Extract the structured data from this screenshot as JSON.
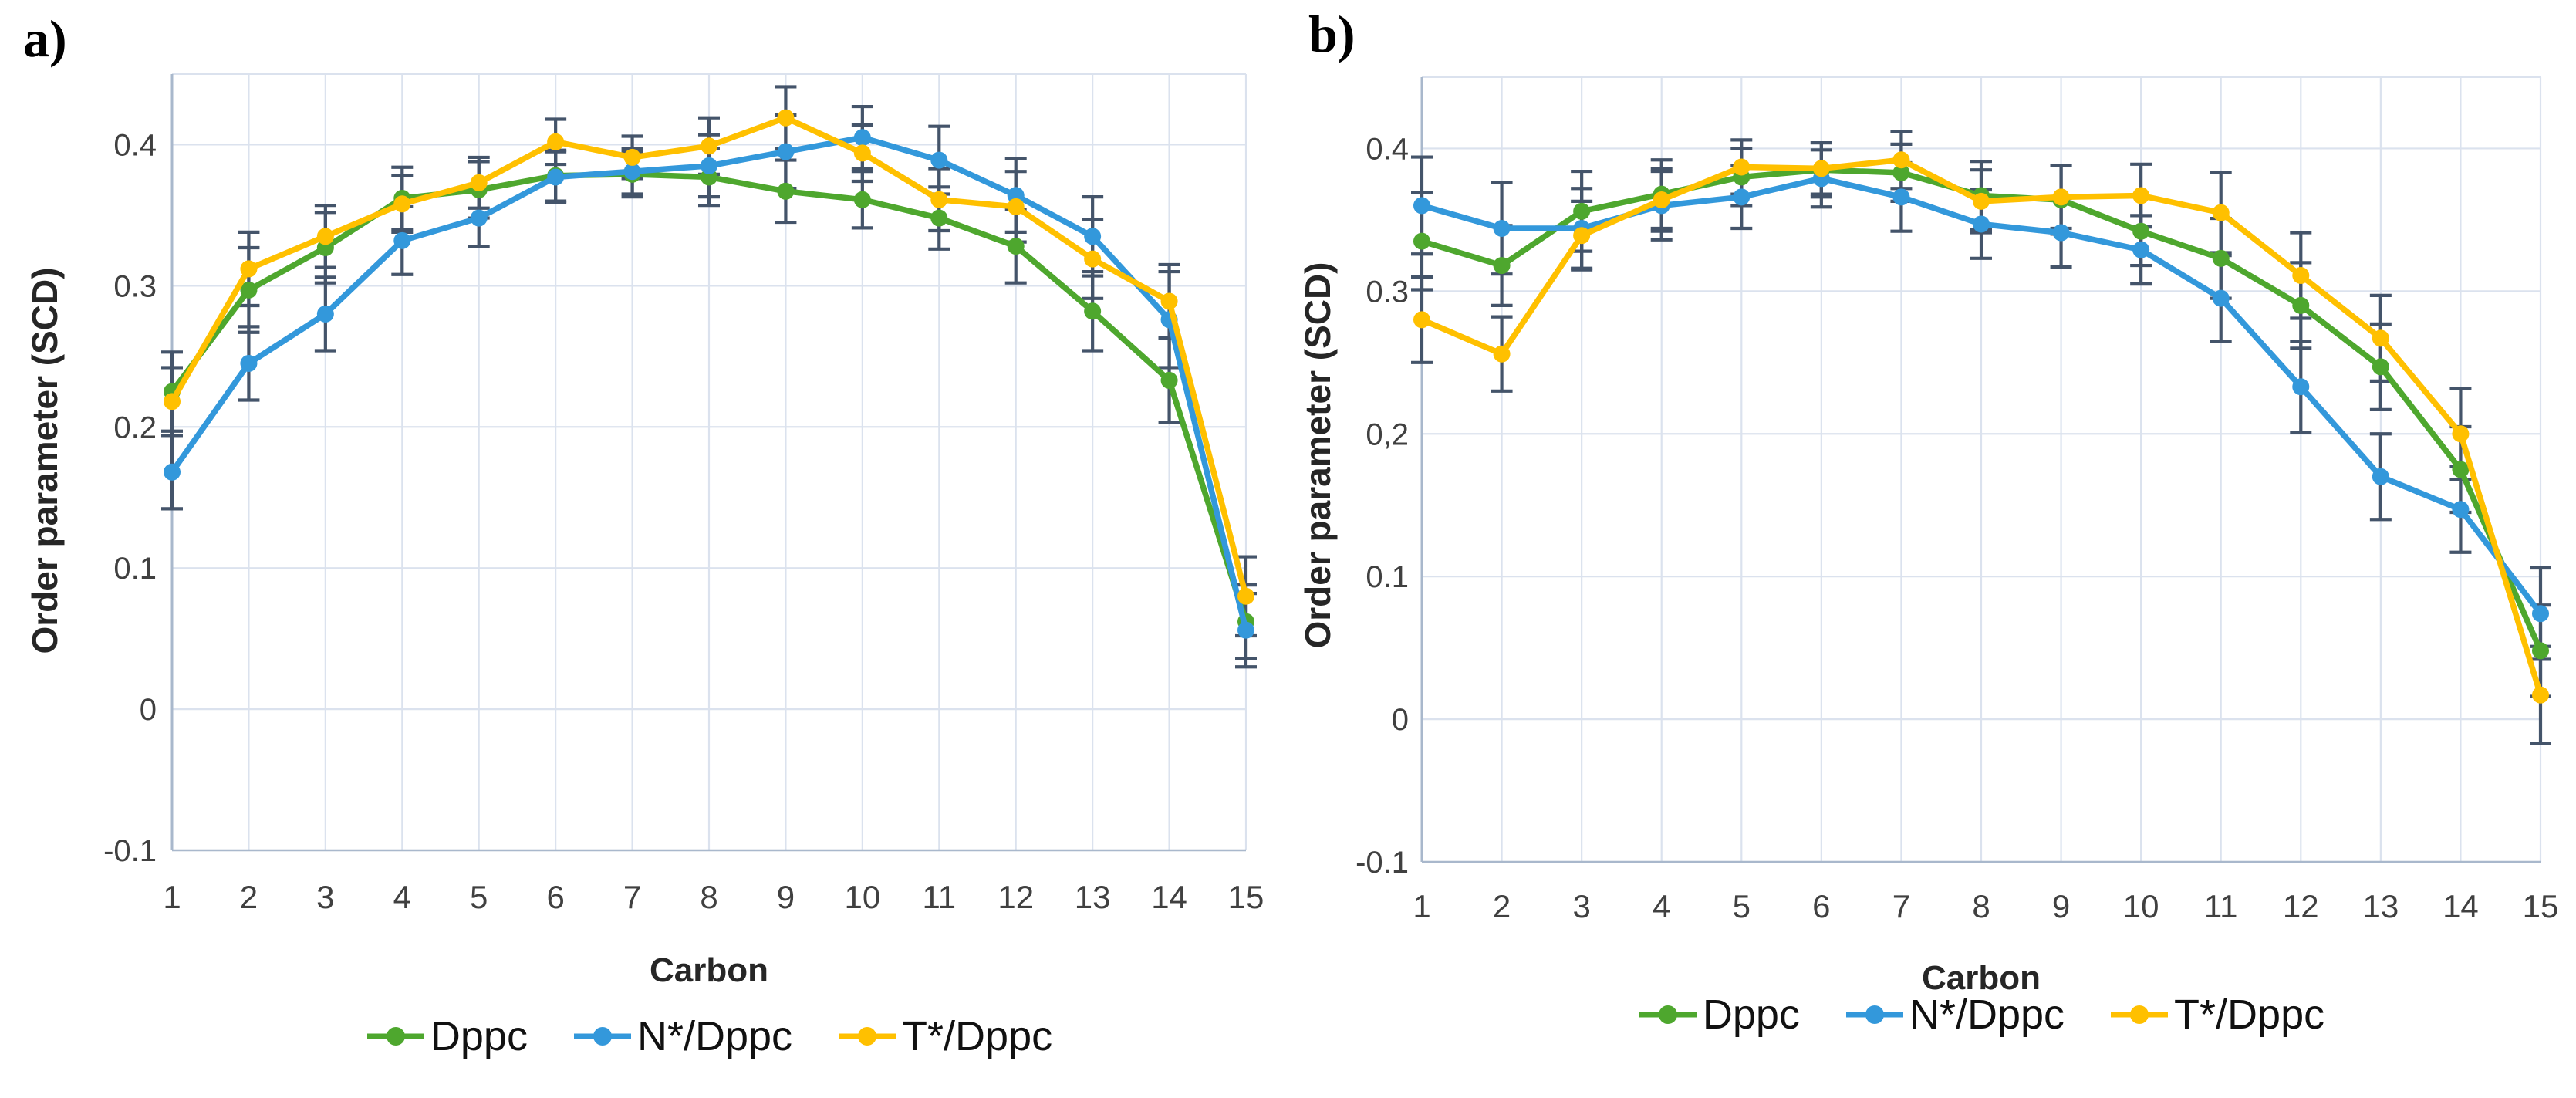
{
  "figure": {
    "background": "#ffffff",
    "panels": [
      {
        "label": "a)"
      },
      {
        "label": "b)"
      }
    ]
  },
  "colors": {
    "series_green": "#4ea72e",
    "series_blue": "#3398db",
    "series_yellow": "#ffc000",
    "error_bar": "#44546a",
    "gridline": "#dbe2ee",
    "axis_line": "#a9b8cc",
    "tick_text": "#404040",
    "title_text": "#262626"
  },
  "chart_data": [
    {
      "id": "a",
      "type": "line",
      "title": "",
      "xlabel": "Carbon",
      "ylabel": "Order parameter (SCD)",
      "ylim": [
        -0.1,
        0.45
      ],
      "grid": true,
      "legend_position": "bottom",
      "x": [
        1,
        2,
        3,
        4,
        5,
        6,
        7,
        8,
        9,
        10,
        11,
        12,
        13,
        14,
        15
      ],
      "x_tick_labels": [
        "1",
        "2",
        "3",
        "4",
        "5",
        "6",
        "7",
        "8",
        "9",
        "10",
        "11",
        "12",
        "13",
        "14",
        "15"
      ],
      "y_ticks": [
        {
          "value": 0.4,
          "label": "0.4"
        },
        {
          "value": 0.3,
          "label": "0.3"
        },
        {
          "value": 0.2,
          "label": "0.2"
        },
        {
          "value": 0.1,
          "label": "0.1"
        },
        {
          "value": 0.0,
          "label": "0"
        },
        {
          "value": -0.1,
          "label": "-0.1"
        }
      ],
      "series": [
        {
          "name": "Dppc",
          "color_key": "series_green",
          "values": [
            0.225,
            0.297,
            0.327,
            0.362,
            0.368,
            0.378,
            0.379,
            0.377,
            0.367,
            0.361,
            0.348,
            0.328,
            0.282,
            0.233,
            0.062
          ],
          "errors": [
            0.028,
            0.03,
            0.025,
            0.022,
            0.02,
            0.018,
            0.016,
            0.02,
            0.022,
            0.02,
            0.022,
            0.026,
            0.028,
            0.03,
            0.026
          ]
        },
        {
          "name": "N*/Dppc",
          "color_key": "series_blue",
          "values": [
            0.168,
            0.245,
            0.28,
            0.332,
            0.348,
            0.377,
            0.381,
            0.385,
            0.395,
            0.405,
            0.389,
            0.364,
            0.335,
            0.276,
            0.056
          ],
          "errors": [
            0.026,
            0.026,
            0.026,
            0.024,
            0.02,
            0.018,
            0.016,
            0.022,
            0.026,
            0.022,
            0.024,
            0.026,
            0.028,
            0.034,
            0.026
          ]
        },
        {
          "name": "T*/Dppc",
          "color_key": "series_yellow",
          "values": [
            0.218,
            0.312,
            0.335,
            0.358,
            0.373,
            0.402,
            0.391,
            0.399,
            0.419,
            0.394,
            0.361,
            0.356,
            0.319,
            0.289,
            0.08
          ],
          "errors": [
            0.024,
            0.026,
            0.022,
            0.02,
            0.018,
            0.016,
            0.015,
            0.02,
            0.022,
            0.02,
            0.022,
            0.025,
            0.028,
            0.026,
            0.028
          ]
        }
      ]
    },
    {
      "id": "b",
      "type": "line",
      "title": "",
      "xlabel": "Carbon",
      "ylabel": "Order parameter (SCD)",
      "ylim": [
        -0.1,
        0.45
      ],
      "grid": true,
      "legend_position": "bottom",
      "x": [
        1,
        2,
        3,
        4,
        5,
        6,
        7,
        8,
        9,
        10,
        11,
        12,
        13,
        14,
        15
      ],
      "x_tick_labels": [
        "1",
        "2",
        "3",
        "4",
        "5",
        "6",
        "7",
        "8",
        "9",
        "10",
        "11",
        "12",
        "13",
        "14",
        "15"
      ],
      "y_ticks": [
        {
          "value": 0.4,
          "label": "0.4"
        },
        {
          "value": 0.3,
          "label": "0.3"
        },
        {
          "value": 0.2,
          "label": "0,2"
        },
        {
          "value": 0.1,
          "label": "0.1"
        },
        {
          "value": 0.0,
          "label": "0"
        },
        {
          "value": -0.1,
          "label": "-0.1"
        }
      ],
      "series": [
        {
          "name": "Dppc",
          "color_key": "series_green",
          "values": [
            0.335,
            0.318,
            0.356,
            0.368,
            0.38,
            0.385,
            0.383,
            0.367,
            0.364,
            0.342,
            0.323,
            0.29,
            0.247,
            0.175,
            0.048
          ],
          "errors": [
            0.034,
            0.028,
            0.028,
            0.024,
            0.02,
            0.019,
            0.02,
            0.024,
            0.024,
            0.024,
            0.028,
            0.03,
            0.03,
            0.03,
            0.032
          ]
        },
        {
          "name": "N*/Dppc",
          "color_key": "series_blue",
          "values": [
            0.36,
            0.344,
            0.344,
            0.36,
            0.366,
            0.379,
            0.366,
            0.347,
            0.341,
            0.329,
            0.295,
            0.233,
            0.17,
            0.147,
            0.074
          ],
          "errors": [
            0.034,
            0.032,
            0.028,
            0.024,
            0.022,
            0.02,
            0.024,
            0.024,
            0.024,
            0.024,
            0.03,
            0.032,
            0.03,
            0.03,
            0.032
          ]
        },
        {
          "name": "T*/Dppc",
          "color_key": "series_yellow",
          "values": [
            0.28,
            0.256,
            0.339,
            0.364,
            0.387,
            0.386,
            0.392,
            0.363,
            0.366,
            0.367,
            0.355,
            0.311,
            0.267,
            0.2,
            0.017
          ],
          "errors": [
            0.03,
            0.026,
            0.024,
            0.022,
            0.019,
            0.018,
            0.02,
            0.022,
            0.022,
            0.022,
            0.028,
            0.03,
            0.03,
            0.032,
            0.034
          ]
        }
      ]
    }
  ]
}
